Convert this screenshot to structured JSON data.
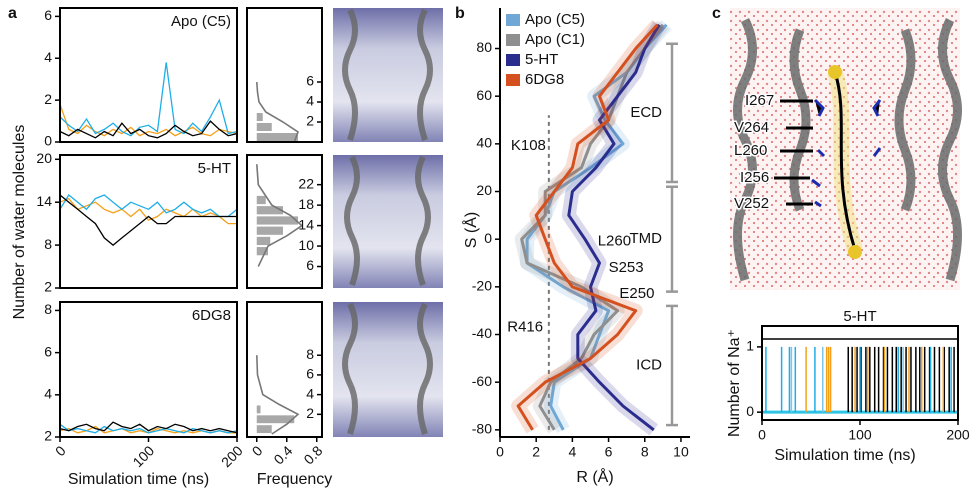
{
  "panel_labels": [
    "a",
    "b",
    "c"
  ],
  "shared_y_label": "Number of water molecules",
  "structure_labels": [
    "I267",
    "V264",
    "L260",
    "I256",
    "V252"
  ],
  "chart_data": [
    {
      "type": "line",
      "title": "Apo (C5)",
      "x": [
        0,
        10,
        20,
        30,
        40,
        50,
        60,
        70,
        80,
        90,
        100,
        110,
        120,
        130,
        140,
        150,
        160,
        170,
        180,
        190,
        200
      ],
      "xlim": [
        0,
        200
      ],
      "ylim": [
        0,
        6.4
      ],
      "yticks": [
        0,
        2,
        4,
        6
      ],
      "series": [
        {
          "color": "#f5a01a",
          "values": [
            1.8,
            0.6,
            0.4,
            0.8,
            0.5,
            0.3,
            0.6,
            0.4,
            0.7,
            0.3,
            0.5,
            0.4,
            0.6,
            0.3,
            0.5,
            0.7,
            0.4,
            0.3,
            0.6,
            0.5,
            0.4
          ]
        },
        {
          "color": "#1eaee8",
          "values": [
            1.2,
            0.8,
            0.5,
            1.1,
            0.4,
            0.6,
            0.9,
            0.5,
            0.3,
            0.7,
            0.8,
            0.5,
            3.8,
            0.6,
            0.4,
            0.9,
            0.5,
            1.2,
            2.0,
            0.4,
            0.5
          ]
        },
        {
          "color": "#000000",
          "values": [
            0.5,
            0.3,
            0.6,
            0.4,
            0.2,
            0.5,
            0.3,
            0.9,
            0.4,
            0.6,
            0.3,
            0.2,
            0.4,
            0.8,
            0.5,
            0.3,
            0.4,
            1.0,
            0.6,
            0.3,
            0.4
          ]
        }
      ]
    },
    {
      "type": "line",
      "title": "5-HT",
      "x": [
        0,
        10,
        20,
        30,
        40,
        50,
        60,
        70,
        80,
        90,
        100,
        110,
        120,
        130,
        140,
        150,
        160,
        170,
        180,
        190,
        200
      ],
      "xlim": [
        0,
        200
      ],
      "ylim": [
        2,
        20.6
      ],
      "yticks": [
        2,
        8,
        14,
        20
      ],
      "series": [
        {
          "color": "#f5a01a",
          "values": [
            14,
            14.5,
            13,
            13.5,
            14,
            13,
            12.5,
            13,
            12,
            13,
            11.5,
            12,
            13,
            12.5,
            12,
            13,
            12,
            12.5,
            12,
            11,
            11
          ]
        },
        {
          "color": "#1eaee8",
          "values": [
            13,
            15,
            14,
            13,
            14.5,
            15,
            14,
            13,
            14,
            13.5,
            13,
            14,
            12.5,
            13,
            14,
            13,
            12.5,
            13,
            12,
            12,
            13
          ]
        },
        {
          "color": "#000000",
          "values": [
            15,
            14,
            13,
            12,
            11,
            9,
            8,
            9,
            10,
            11,
            12,
            11,
            11,
            12,
            12,
            12,
            12,
            12,
            12,
            12,
            12
          ]
        }
      ]
    },
    {
      "type": "line",
      "title": "6DG8",
      "xlabel": "Simulation time (ns)",
      "x": [
        0,
        10,
        20,
        30,
        40,
        50,
        60,
        70,
        80,
        90,
        100,
        110,
        120,
        130,
        140,
        150,
        160,
        170,
        180,
        190,
        200
      ],
      "xlim": [
        0,
        200
      ],
      "xticks": [
        0,
        100,
        200
      ],
      "ylim": [
        2,
        8.4
      ],
      "yticks": [
        2,
        4,
        6,
        8
      ],
      "series": [
        {
          "color": "#f5a01a",
          "values": [
            2.3,
            2.4,
            2.2,
            2.3,
            2.5,
            2.2,
            2.3,
            2.4,
            2.2,
            2.3,
            2.2,
            2.4,
            2.3,
            2.2,
            2.3,
            2.2,
            2.3,
            2.2,
            2.3,
            2.2,
            2.2
          ]
        },
        {
          "color": "#1eaee8",
          "values": [
            2.6,
            2.3,
            2.4,
            2.3,
            2.2,
            2.5,
            2.3,
            2.4,
            2.3,
            2.4,
            2.2,
            2.3,
            2.4,
            2.3,
            2.2,
            2.4,
            2.3,
            2.2,
            2.3,
            2.2,
            2.3
          ]
        },
        {
          "color": "#000000",
          "values": [
            2.4,
            2.3,
            2.5,
            2.6,
            2.4,
            2.3,
            2.7,
            2.5,
            2.4,
            2.6,
            2.3,
            2.5,
            2.4,
            2.6,
            2.5,
            2.3,
            2.4,
            2.3,
            2.4,
            2.3,
            2.2
          ]
        }
      ]
    },
    {
      "type": "histogram",
      "bins": [
        0,
        1,
        2,
        3
      ],
      "values": [
        0.55,
        0.2,
        0.08
      ],
      "color": "#a8a8a8",
      "fit": {
        "x": [
          0.5,
          0.55,
          0.35,
          0.12,
          0.03,
          0.01,
          0
        ],
        "y": [
          0,
          1,
          2,
          3,
          4,
          5,
          6
        ]
      },
      "xlim": [
        -0.13,
        0.87
      ],
      "ylim": [
        0,
        13.4
      ],
      "yticks": [
        2,
        4,
        6
      ]
    },
    {
      "type": "histogram",
      "bins": [
        8,
        10,
        12,
        14,
        16,
        18,
        20
      ],
      "values": [
        0.15,
        0.18,
        0.35,
        0.55,
        0.35,
        0.12
      ],
      "color": "#a8a8a8",
      "fit": {
        "x": [
          0.02,
          0.15,
          0.4,
          0.6,
          0.45,
          0.2,
          0.02,
          0
        ],
        "y": [
          6,
          10,
          12,
          14,
          16,
          18,
          22,
          26
        ]
      },
      "xlim": [
        -0.13,
        0.87
      ],
      "ylim": [
        1.8,
        27.8
      ],
      "yticks": [
        6,
        10,
        14,
        18,
        22
      ]
    },
    {
      "type": "histogram",
      "xlabel": "Frequency",
      "bins": [
        0,
        1,
        2,
        3
      ],
      "values": [
        0.2,
        0.5,
        0.05
      ],
      "color": "#a8a8a8",
      "fit": {
        "x": [
          0.2,
          0.4,
          0.55,
          0.3,
          0.08,
          0.01,
          0
        ],
        "y": [
          0,
          1,
          2,
          3,
          4,
          6,
          8
        ]
      },
      "xlim": [
        -0.13,
        0.87
      ],
      "xticks": [
        0,
        0.4,
        0.8
      ],
      "ylim": [
        -0.3,
        13.4
      ],
      "yticks": [
        2,
        4,
        6,
        8
      ]
    },
    {
      "type": "line",
      "orientation": "horizontal",
      "xlabel": "R (Å)",
      "ylabel": "S (Å)",
      "y": [
        -80,
        -70,
        -60,
        -50,
        -40,
        -30,
        -20,
        -10,
        0,
        10,
        20,
        30,
        40,
        50,
        60,
        70,
        80,
        90
      ],
      "xlim": [
        0,
        10.5
      ],
      "xticks": [
        0,
        2,
        4,
        6,
        8,
        10
      ],
      "ylim": [
        -83,
        97
      ],
      "yticks": [
        -80,
        -60,
        -40,
        -20,
        0,
        20,
        40,
        60,
        80
      ],
      "reference_line": 2.7,
      "annotations": [
        {
          "text": "K108",
          "x": 0.6,
          "y": 39
        },
        {
          "text": "R416",
          "x": 0.4,
          "y": -37
        },
        {
          "text": "L260",
          "x": 5.4,
          "y": -1
        },
        {
          "text": "S253",
          "x": 6.0,
          "y": -12
        },
        {
          "text": "E250",
          "x": 6.6,
          "y": -23
        }
      ],
      "regions": [
        {
          "label": "ECD",
          "range": [
            24,
            82
          ]
        },
        {
          "label": "TMD",
          "range": [
            -22,
            22
          ]
        },
        {
          "label": "ICD",
          "range": [
            -78,
            -28
          ]
        }
      ],
      "series": [
        {
          "name": "Apo (C5)",
          "color": "#6fa8d6",
          "values": [
            3.5,
            2.8,
            3,
            5,
            5.5,
            6,
            3.5,
            1.5,
            1.5,
            2.5,
            3,
            5,
            6.8,
            5.8,
            5.2,
            7,
            8,
            9.2
          ]
        },
        {
          "name": "Apo (C1)",
          "color": "#8f8f8f",
          "values": [
            3,
            2.2,
            2.8,
            4.5,
            5.2,
            6.5,
            4.5,
            1.5,
            1.2,
            2.5,
            2.5,
            4.5,
            5,
            6,
            6.5,
            7,
            8,
            9
          ]
        },
        {
          "name": "5-HT",
          "color": "#2b2d8e",
          "values": [
            8.5,
            6.8,
            5.5,
            4.3,
            4.3,
            5.3,
            5,
            5.5,
            4.7,
            3.8,
            4,
            5.3,
            6.3,
            5.5,
            6.5,
            7.5,
            8,
            8.8
          ]
        },
        {
          "name": "6DG8",
          "color": "#d4501e",
          "values": [
            1.8,
            1,
            2.5,
            5,
            6.5,
            7.5,
            4,
            3,
            2.5,
            2,
            3,
            4,
            4.3,
            6,
            5.5,
            6.5,
            7.5,
            8.7
          ]
        }
      ]
    },
    {
      "type": "event",
      "title": "5-HT",
      "xlabel": "Simulation time (ns)",
      "ylabel": "Number of Na⁺",
      "xlim": [
        0,
        200
      ],
      "xticks": [
        0,
        100,
        200
      ],
      "ylim": [
        -0.12,
        1.32
      ],
      "yticks": [
        0,
        1
      ],
      "series": [
        {
          "color": "#000000",
          "x": [
            88,
            92,
            97,
            101,
            106,
            110,
            115,
            119,
            124,
            128,
            133,
            137,
            142,
            147,
            152,
            157,
            161,
            166,
            171,
            176,
            181,
            186,
            191,
            196
          ],
          "values": [
            1,
            1,
            1,
            1,
            1,
            1,
            1,
            1,
            1,
            1,
            1,
            1,
            1,
            1,
            1,
            1,
            1,
            1,
            1,
            1,
            1,
            1,
            1,
            1
          ]
        },
        {
          "color": "#f5a01a",
          "x": [
            45,
            66,
            68,
            70,
            95,
            108,
            125,
            150,
            163,
            185
          ],
          "values": [
            1,
            1,
            1,
            1,
            1,
            1,
            1,
            1,
            1,
            1
          ]
        },
        {
          "color": "#1eaee8",
          "x": [
            4,
            20,
            28,
            34,
            54,
            100,
            139,
            172,
            193
          ],
          "values": [
            1,
            1,
            1,
            1,
            1,
            1,
            1,
            1,
            1
          ]
        },
        {
          "color": "#7fc4e8",
          "x": [
            30,
            62,
            144
          ],
          "values": [
            1,
            1,
            1
          ]
        }
      ]
    }
  ]
}
